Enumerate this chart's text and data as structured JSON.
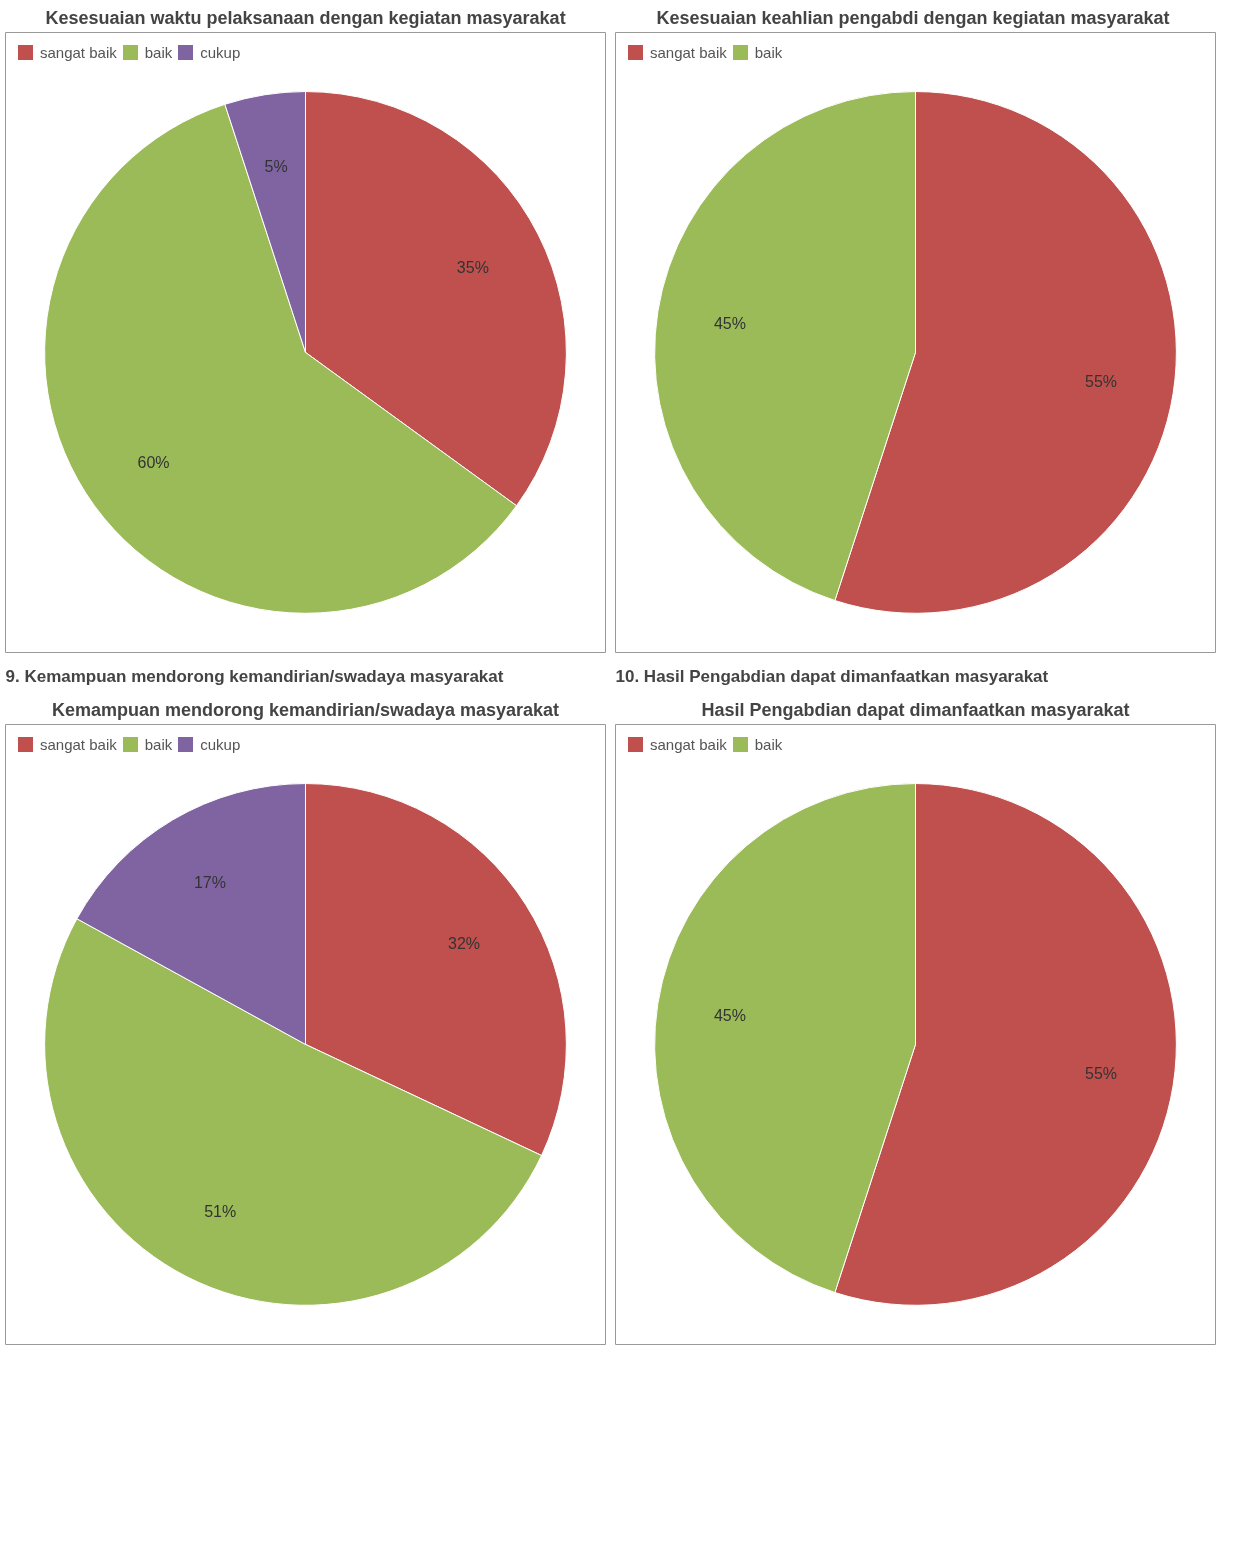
{
  "chart_data": [
    {
      "type": "pie",
      "title": "Kesesuaian waktu pelaksanaan dengan kegiatan masyarakat",
      "categories": [
        "sangat baik",
        "baik",
        "cukup"
      ],
      "values": [
        35,
        60,
        5
      ],
      "colors": [
        "#c0504d",
        "#9bbb59",
        "#8064a2"
      ],
      "value_labels": [
        "35%",
        "60%",
        "5%"
      ],
      "legend": "top left"
    },
    {
      "type": "pie",
      "title": "Kesesuaian keahlian pengabdi  dengan kegiatan masyarakat",
      "categories": [
        "sangat baik",
        "baik"
      ],
      "values": [
        55,
        45
      ],
      "colors": [
        "#c0504d",
        "#9bbb59"
      ],
      "value_labels": [
        "55%",
        "45%"
      ],
      "legend": "top left"
    },
    {
      "type": "pie",
      "title": "Kemampuan mendorong kemandirian/swadaya masyarakat",
      "annotations": [
        "9. Kemampuan mendorong kemandirian/swadaya masyarakat"
      ],
      "categories": [
        "sangat baik",
        "baik",
        "cukup"
      ],
      "values": [
        32,
        51,
        17
      ],
      "colors": [
        "#c0504d",
        "#9bbb59",
        "#8064a2"
      ],
      "value_labels": [
        "32%",
        "51%",
        "17%"
      ],
      "legend": "top left"
    },
    {
      "type": "pie",
      "title": "Hasil Pengabdian dapat dimanfaatkan masyarakat",
      "annotations": [
        "10. Hasil Pengabdian dapat dimanfaatkan masyarakat"
      ],
      "categories": [
        "sangat baik",
        "baik"
      ],
      "values": [
        55,
        45
      ],
      "colors": [
        "#c0504d",
        "#9bbb59"
      ],
      "value_labels": [
        "55%",
        "45%"
      ],
      "legend": "top left"
    }
  ]
}
